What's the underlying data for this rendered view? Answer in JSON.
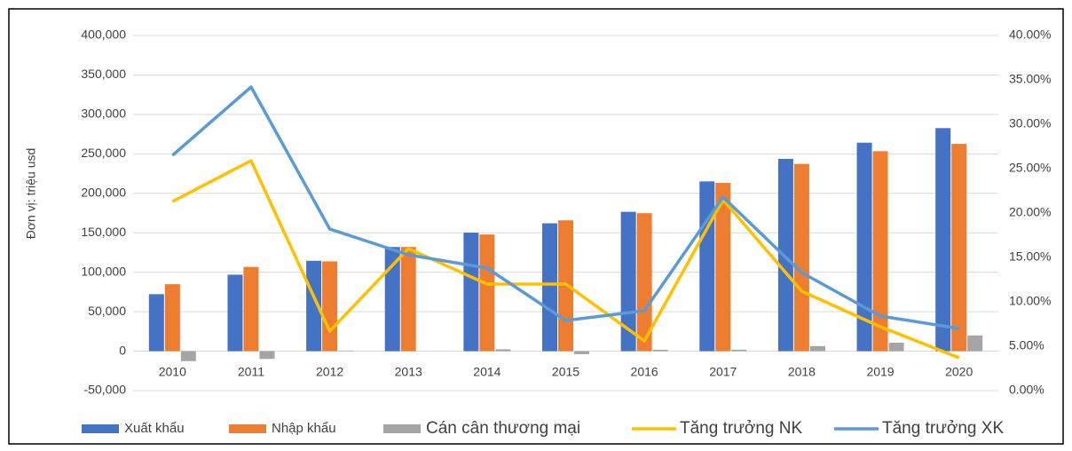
{
  "chart_data": {
    "type": "bar",
    "y_label": "Đơn vị: triệu usd",
    "categories": [
      "2010",
      "2011",
      "2012",
      "2013",
      "2014",
      "2015",
      "2016",
      "2017",
      "2018",
      "2019",
      "2020"
    ],
    "series": [
      {
        "name": "Xuất khẩu",
        "color": "#4472c4",
        "type": "bar",
        "values": [
          72237,
          96906,
          114529,
          132033,
          150217,
          162017,
          176581,
          215119,
          243697,
          264189,
          282629
        ]
      },
      {
        "name": "Nhập khẩu",
        "color": "#ed7d31",
        "type": "bar",
        "values": [
          84839,
          106750,
          113780,
          132032,
          147849,
          165776,
          174804,
          213215,
          237242,
          253393,
          262691
        ]
      },
      {
        "name": "Cán cân thương mại",
        "color": "#a5a5a5",
        "type": "bar",
        "values": [
          -12602,
          -9844,
          749,
          1,
          2368,
          -3759,
          1777,
          1904,
          6455,
          10796,
          19938
        ]
      },
      {
        "name": "Tăng trưởng NK",
        "color": "#ffc000",
        "type": "line",
        "axis": "y2",
        "values": [
          21.3,
          25.9,
          6.7,
          16.0,
          12.0,
          12.0,
          5.6,
          21.5,
          11.2,
          7.2,
          3.7
        ]
      },
      {
        "name": "Tăng trưởng XK",
        "color": "#5b9bd5",
        "type": "line",
        "axis": "y2",
        "values": [
          26.5,
          34.2,
          18.2,
          15.3,
          13.8,
          7.9,
          9.0,
          21.8,
          13.3,
          8.4,
          7.0
        ]
      }
    ],
    "ylim": [
      -50000,
      400000
    ],
    "yticks": [
      {
        "value": -50000,
        "label": "-50,000"
      },
      0,
      {
        "value": 50000,
        "label": "50,000"
      },
      {
        "value": 100000,
        "label": "100,000"
      },
      {
        "value": 150000,
        "label": "150,000"
      },
      {
        "value": 200000,
        "label": "200,000"
      },
      {
        "value": 250000,
        "label": "250,000"
      },
      {
        "value": 300000,
        "label": "300,000"
      },
      {
        "value": 350000,
        "label": "350,000"
      },
      {
        "value": 400000,
        "label": "400,000"
      }
    ],
    "y2lim": [
      0,
      40
    ],
    "y2ticks": [
      {
        "value": 0,
        "label": "0.00%"
      },
      {
        "value": 5,
        "label": "5.00%"
      },
      {
        "value": 10,
        "label": "10.00%"
      },
      {
        "value": 15,
        "label": "15.00%"
      },
      {
        "value": 20,
        "label": "20.00%"
      },
      {
        "value": 25,
        "label": "25.00%"
      },
      {
        "value": 30,
        "label": "30.00%"
      },
      {
        "value": 35,
        "label": "35.00%"
      },
      {
        "value": 40,
        "label": "40.00%"
      }
    ],
    "grid": true,
    "legend": "bottom"
  }
}
